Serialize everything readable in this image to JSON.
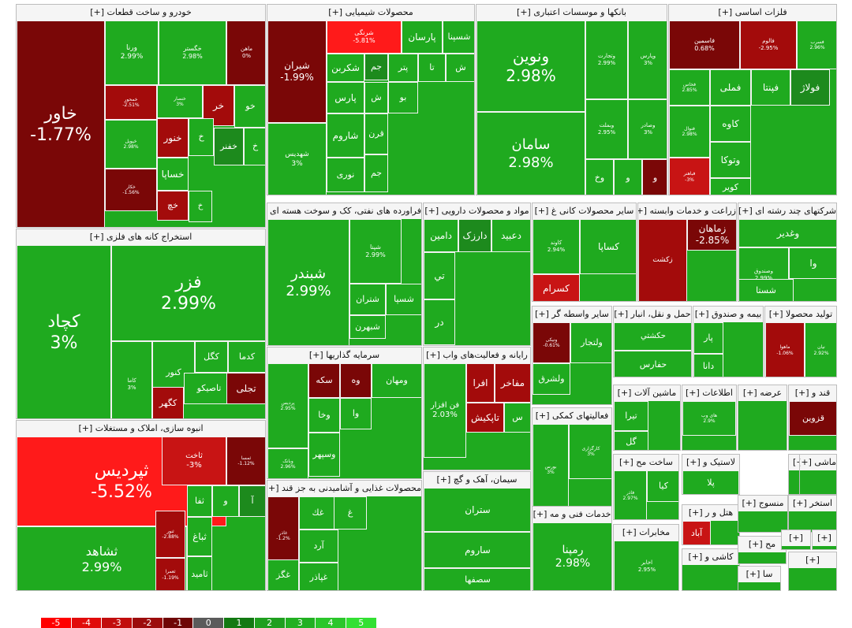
{
  "legend": {
    "values": [
      "-5",
      "-4",
      "-3",
      "-2",
      "-1",
      "0",
      "1",
      "2",
      "3",
      "4",
      "5"
    ],
    "colors": [
      "#ff0000",
      "#e10b0b",
      "#c20d0d",
      "#9c0c0c",
      "#6f0606",
      "#5b5b5b",
      "#127912",
      "#1f9f1f",
      "#22b022",
      "#2bc62b",
      "#33e033"
    ]
  },
  "colors": {
    "pos3": "#1faa1f",
    "pos2": "#2bb52b",
    "pos1": "#1d8a1d",
    "neg1": "#7a0707",
    "neg2": "#a30b0b",
    "neg3": "#c81414",
    "neg5": "#ff1a1a"
  },
  "sectors": [
    {
      "title": "خودرو و ساخت قطعات [+]",
      "tiles": [
        {
          "name": "خاور",
          "pct": "-1.77%"
        },
        {
          "name": "ورنا",
          "pct": "2.99%"
        },
        {
          "name": "خگستر",
          "pct": "2.98%"
        },
        {
          "name": "ماهن",
          "pct": "0%"
        },
        {
          "name": "خمحور",
          "pct": "-2.51%"
        },
        {
          "name": "خنصار",
          "pct": "3%"
        },
        {
          "name": "خر",
          "pct": ""
        },
        {
          "name": "خو",
          "pct": ""
        },
        {
          "name": "خپویل",
          "pct": "2.98%"
        },
        {
          "name": "خنور",
          "pct": ""
        },
        {
          "name": "خ",
          "pct": ""
        },
        {
          "name": "خفنر",
          "pct": ""
        },
        {
          "name": "خ",
          "pct": ""
        },
        {
          "name": "خساپا",
          "pct": ""
        },
        {
          "name": "خکار",
          "pct": "-1.56%"
        },
        {
          "name": "خچ",
          "pct": ""
        },
        {
          "name": "خ",
          "pct": ""
        }
      ]
    },
    {
      "title": "محصولات شیمیایی [+]",
      "tiles": [
        {
          "name": "شیران",
          "pct": "-1.99%"
        },
        {
          "name": "شرنگی",
          "pct": "-5.81%"
        },
        {
          "name": "پارسان",
          "pct": ""
        },
        {
          "name": "شسپنا",
          "pct": ""
        },
        {
          "name": "شکربن",
          "pct": ""
        },
        {
          "name": "جم",
          "pct": ""
        },
        {
          "name": "پتر",
          "pct": ""
        },
        {
          "name": "تا",
          "pct": ""
        },
        {
          "name": "ش",
          "pct": ""
        },
        {
          "name": "پارس",
          "pct": ""
        },
        {
          "name": "ش",
          "pct": ""
        },
        {
          "name": "بو",
          "pct": ""
        },
        {
          "name": "شهدیس",
          "pct": "3%"
        },
        {
          "name": "شاروم",
          "pct": ""
        },
        {
          "name": "قرن",
          "pct": ""
        },
        {
          "name": "نوری",
          "pct": ""
        },
        {
          "name": "جم",
          "pct": ""
        }
      ]
    },
    {
      "title": "بانکها و موسسات اعتباری [+]",
      "tiles": [
        {
          "name": "ونوین",
          "pct": "2.98%"
        },
        {
          "name": "وتجارت",
          "pct": "2.99%"
        },
        {
          "name": "وپارس",
          "pct": "3%"
        },
        {
          "name": "سامان",
          "pct": "2.98%"
        },
        {
          "name": "وبملت",
          "pct": "2.95%"
        },
        {
          "name": "وصادر",
          "pct": "3%"
        },
        {
          "name": "وخ",
          "pct": ""
        },
        {
          "name": "و",
          "pct": ""
        },
        {
          "name": "و",
          "pct": ""
        }
      ]
    },
    {
      "title": "فلزات اساسی [+]",
      "tiles": [
        {
          "name": "فاسمین",
          "pct": "0.68%"
        },
        {
          "name": "فالوم",
          "pct": "-2.95%"
        },
        {
          "name": "فسرب",
          "pct": "2.96%"
        },
        {
          "name": "فخاس",
          "pct": "2.85%"
        },
        {
          "name": "فملی",
          "pct": ""
        },
        {
          "name": "فپنتا",
          "pct": ""
        },
        {
          "name": "فولاژ",
          "pct": ""
        },
        {
          "name": "فنوال",
          "pct": "2.98%"
        },
        {
          "name": "کاوه",
          "pct": ""
        },
        {
          "name": "وتوکا",
          "pct": ""
        },
        {
          "name": "فباهنر",
          "pct": "-3%"
        },
        {
          "name": "کویر",
          "pct": ""
        }
      ]
    },
    {
      "title": "استخراج کانه های فلزی [+]",
      "tiles": [
        {
          "name": "کچاد",
          "pct": "3%"
        },
        {
          "name": "فزر",
          "pct": "2.99%"
        },
        {
          "name": "کدما",
          "pct": ""
        },
        {
          "name": "کگل",
          "pct": ""
        },
        {
          "name": "کنور",
          "pct": ""
        },
        {
          "name": "کاما",
          "pct": "3%"
        },
        {
          "name": "تاصیکو",
          "pct": ""
        },
        {
          "name": "تجلی",
          "pct": ""
        },
        {
          "name": "کگهر",
          "pct": ""
        }
      ]
    },
    {
      "title": "انبوه سازی، املاک و مستغلات [+]",
      "tiles": [
        {
          "name": "ثپردیس",
          "pct": "-5.52%"
        },
        {
          "name": "ثاخت",
          "pct": "-3%"
        },
        {
          "name": "ثمسا",
          "pct": "-1.12%"
        },
        {
          "name": "ثشاهد",
          "pct": "2.99%"
        },
        {
          "name": "ثنور",
          "pct": "-2.88%"
        },
        {
          "name": "ثفا",
          "pct": ""
        },
        {
          "name": "و",
          "pct": ""
        },
        {
          "name": "آ",
          "pct": ""
        },
        {
          "name": "ثباغ",
          "pct": ""
        },
        {
          "name": "ثعمرا",
          "pct": "-1.19%"
        },
        {
          "name": "ثامید",
          "pct": ""
        }
      ]
    },
    {
      "title": "فراورده های نفتی، کک و سوخت هسته ای [+]",
      "tiles": [
        {
          "name": "شبندر",
          "pct": "2.99%"
        },
        {
          "name": "شپنا",
          "pct": "2.99%"
        },
        {
          "name": "شتران",
          "pct": ""
        },
        {
          "name": "شسپا",
          "pct": ""
        },
        {
          "name": "شبهرن",
          "pct": ""
        }
      ]
    },
    {
      "title": "مواد و محصولات دارویی [+]",
      "tiles": [
        {
          "name": "دامین",
          "pct": ""
        },
        {
          "name": "دارزک",
          "pct": ""
        },
        {
          "name": "دعبید",
          "pct": ""
        },
        {
          "name": "تي",
          "pct": ""
        },
        {
          "name": "در",
          "pct": ""
        }
      ]
    },
    {
      "title": "سایر محصولات کانی غ [+]",
      "tiles": [
        {
          "name": "کاوند",
          "pct": "2.94%"
        },
        {
          "name": "کساپا",
          "pct": ""
        },
        {
          "name": "کسرام",
          "pct": ""
        }
      ]
    },
    {
      "title": "زراعت و خدمات وابسته [+]",
      "tiles": [
        {
          "name": "زكشت",
          "pct": ""
        },
        {
          "name": "زماهان",
          "pct": "-2.85%"
        }
      ]
    },
    {
      "title": "شرکتهای چند رشته ای [+]",
      "tiles": [
        {
          "name": "وغدیر",
          "pct": ""
        },
        {
          "name": "وصندوق",
          "pct": "2.99%"
        },
        {
          "name": "وا",
          "pct": ""
        },
        {
          "name": "شستا",
          "pct": ""
        }
      ]
    },
    {
      "title": "سایر واسطه گر [+]",
      "tiles": [
        {
          "name": "ونیکی",
          "pct": "-0.61%"
        },
        {
          "name": "ولتجار",
          "pct": ""
        },
        {
          "name": "ولشرق",
          "pct": ""
        }
      ]
    },
    {
      "title": "حمل و نقل، انبار [+]",
      "tiles": [
        {
          "name": "حکشتي",
          "pct": ""
        },
        {
          "name": "حفارس",
          "pct": ""
        }
      ]
    },
    {
      "title": "بیمه و صندوق [+]",
      "tiles": [
        {
          "name": "پار",
          "pct": ""
        },
        {
          "name": "دانا",
          "pct": ""
        }
      ]
    },
    {
      "title": "تولید محصولا [+]",
      "tiles": [
        {
          "name": "ماهوا",
          "pct": "-1.06%"
        },
        {
          "name": "نیان",
          "pct": "2.92%"
        }
      ]
    },
    {
      "title": "سرمایه گذاریها [+]",
      "tiles": [
        {
          "name": "پردیس",
          "pct": "2.95%"
        },
        {
          "name": "سکه",
          "pct": ""
        },
        {
          "name": "وه",
          "pct": ""
        },
        {
          "name": "ومهان",
          "pct": ""
        },
        {
          "name": "وخا",
          "pct": ""
        },
        {
          "name": "وا",
          "pct": ""
        },
        {
          "name": "وسپهر",
          "pct": ""
        },
        {
          "name": "وبانک",
          "pct": "2.96%"
        }
      ]
    },
    {
      "title": "رایانه و فعالیت‌های واب [+]",
      "tiles": [
        {
          "name": "فن افزار",
          "pct": "2.03%"
        },
        {
          "name": "افرا",
          "pct": ""
        },
        {
          "name": "مفاخر",
          "pct": ""
        },
        {
          "name": "تاپکیش",
          "pct": ""
        },
        {
          "name": "س",
          "pct": ""
        }
      ]
    },
    {
      "title": "ماشین آلات [+]",
      "tiles": [
        {
          "name": "تیرا",
          "pct": ""
        },
        {
          "name": "گل",
          "pct": ""
        }
      ]
    },
    {
      "title": "اطلاعات [+]",
      "tiles": [
        {
          "name": "های وب",
          "pct": "2.9%"
        }
      ]
    },
    {
      "title": "عرضه [+]",
      "tiles": []
    },
    {
      "title": "قند و [+]",
      "tiles": [
        {
          "name": "قزوین",
          "pct": ""
        }
      ]
    },
    {
      "title": "فعالیتهای کمکی [+]",
      "tiles": [
        {
          "name": "بورس",
          "pct": "3%"
        },
        {
          "name": "کارگزاری",
          "pct": "3%"
        }
      ]
    },
    {
      "title": "محصولات غذایی و آشامیدنی به جز قند [+]",
      "tiles": [
        {
          "name": "غاذر",
          "pct": "-1.2%"
        },
        {
          "name": "غك",
          "pct": ""
        },
        {
          "name": "غ",
          "pct": ""
        },
        {
          "name": "آرد",
          "pct": ""
        },
        {
          "name": "غگز",
          "pct": ""
        },
        {
          "name": "غپاذر",
          "pct": ""
        }
      ]
    },
    {
      "title": "سیمان، آهک و گچ [+]",
      "tiles": [
        {
          "name": "ستران",
          "pct": ""
        },
        {
          "name": "ساروم",
          "pct": ""
        },
        {
          "name": "سصفها",
          "pct": ""
        }
      ]
    },
    {
      "title": "خدمات فنی و مه [+]",
      "tiles": [
        {
          "name": "رمپنا",
          "pct": "2.98%"
        }
      ]
    },
    {
      "title": "ساخت مح [+]",
      "tiles": [
        {
          "name": "فاذر",
          "pct": "2.97%"
        },
        {
          "name": "کیا",
          "pct": ""
        }
      ]
    },
    {
      "title": "لاستیک و [+]",
      "tiles": [
        {
          "name": "پلا",
          "pct": ""
        }
      ]
    },
    {
      "title": "استخر [+]",
      "tiles": []
    },
    {
      "title": "ماشی [+]",
      "tiles": []
    },
    {
      "title": "هتل و ر [+]",
      "tiles": [
        {
          "name": "آباد",
          "pct": ""
        }
      ]
    },
    {
      "title": "منسوج [+]",
      "tiles": []
    },
    {
      "title": "استخر [+]",
      "tiles": []
    },
    {
      "title": "مخابرات [+]",
      "tiles": [
        {
          "name": "اخابر",
          "pct": "2.95%"
        }
      ]
    },
    {
      "title": "کاشی و [+]",
      "tiles": []
    },
    {
      "title": "مح [+]",
      "tiles": []
    },
    {
      "title": "[+]",
      "tiles": []
    },
    {
      "title": "[+]",
      "tiles": []
    },
    {
      "title": "سا [+]",
      "tiles": []
    },
    {
      "title": "[+]",
      "tiles": []
    }
  ]
}
